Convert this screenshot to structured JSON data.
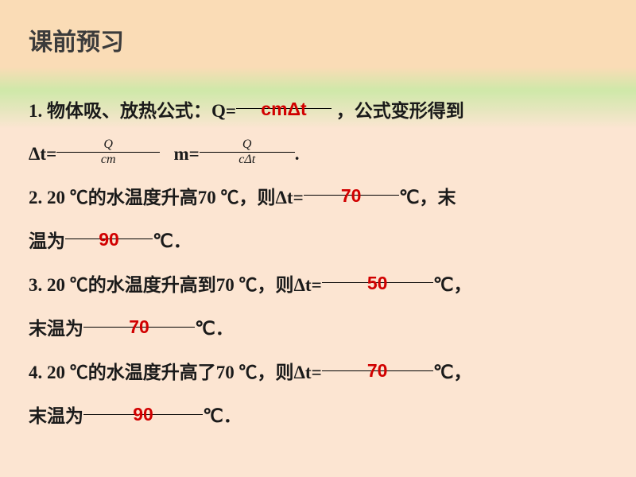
{
  "colors": {
    "answer": "#d10000",
    "text": "#1a1a1a",
    "bg_top": "#fadcb6",
    "bg_green": "#cfe8a9",
    "bg_bottom": "#fce5d2"
  },
  "fonts": {
    "body_size": 23,
    "title_size": 30,
    "frac_size": 16
  },
  "title": "课前预习",
  "q1": {
    "pre": "1. 物体吸、放热公式：Q=",
    "ans1": "cmΔt",
    "mid1": "，公式变形得到",
    "line2_pre": "Δt=",
    "frac1_num": "Q",
    "frac1_den": "cm",
    "mid2": "m=",
    "frac2_num": "Q",
    "frac2_den": "cΔt",
    "end": "."
  },
  "q2": {
    "pre": "2.  20 ℃的水温度升高70 ℃，则Δt=",
    "ans1": "70",
    "mid": "℃，末",
    "line2_pre": "温为",
    "ans2": "90",
    "end": "℃．"
  },
  "q3": {
    "pre": "3.  20 ℃的水温度升高到70 ℃，则Δt=",
    "ans1": "50",
    "mid": "℃，",
    "line2_pre": "末温为",
    "ans2": "70",
    "end": "℃．"
  },
  "q4": {
    "pre": "4. 20 ℃的水温度升高了70 ℃，则Δt=",
    "ans1": "70",
    "mid": "℃，",
    "line2_pre": "末温为",
    "ans2": "90",
    "end": "℃．"
  }
}
